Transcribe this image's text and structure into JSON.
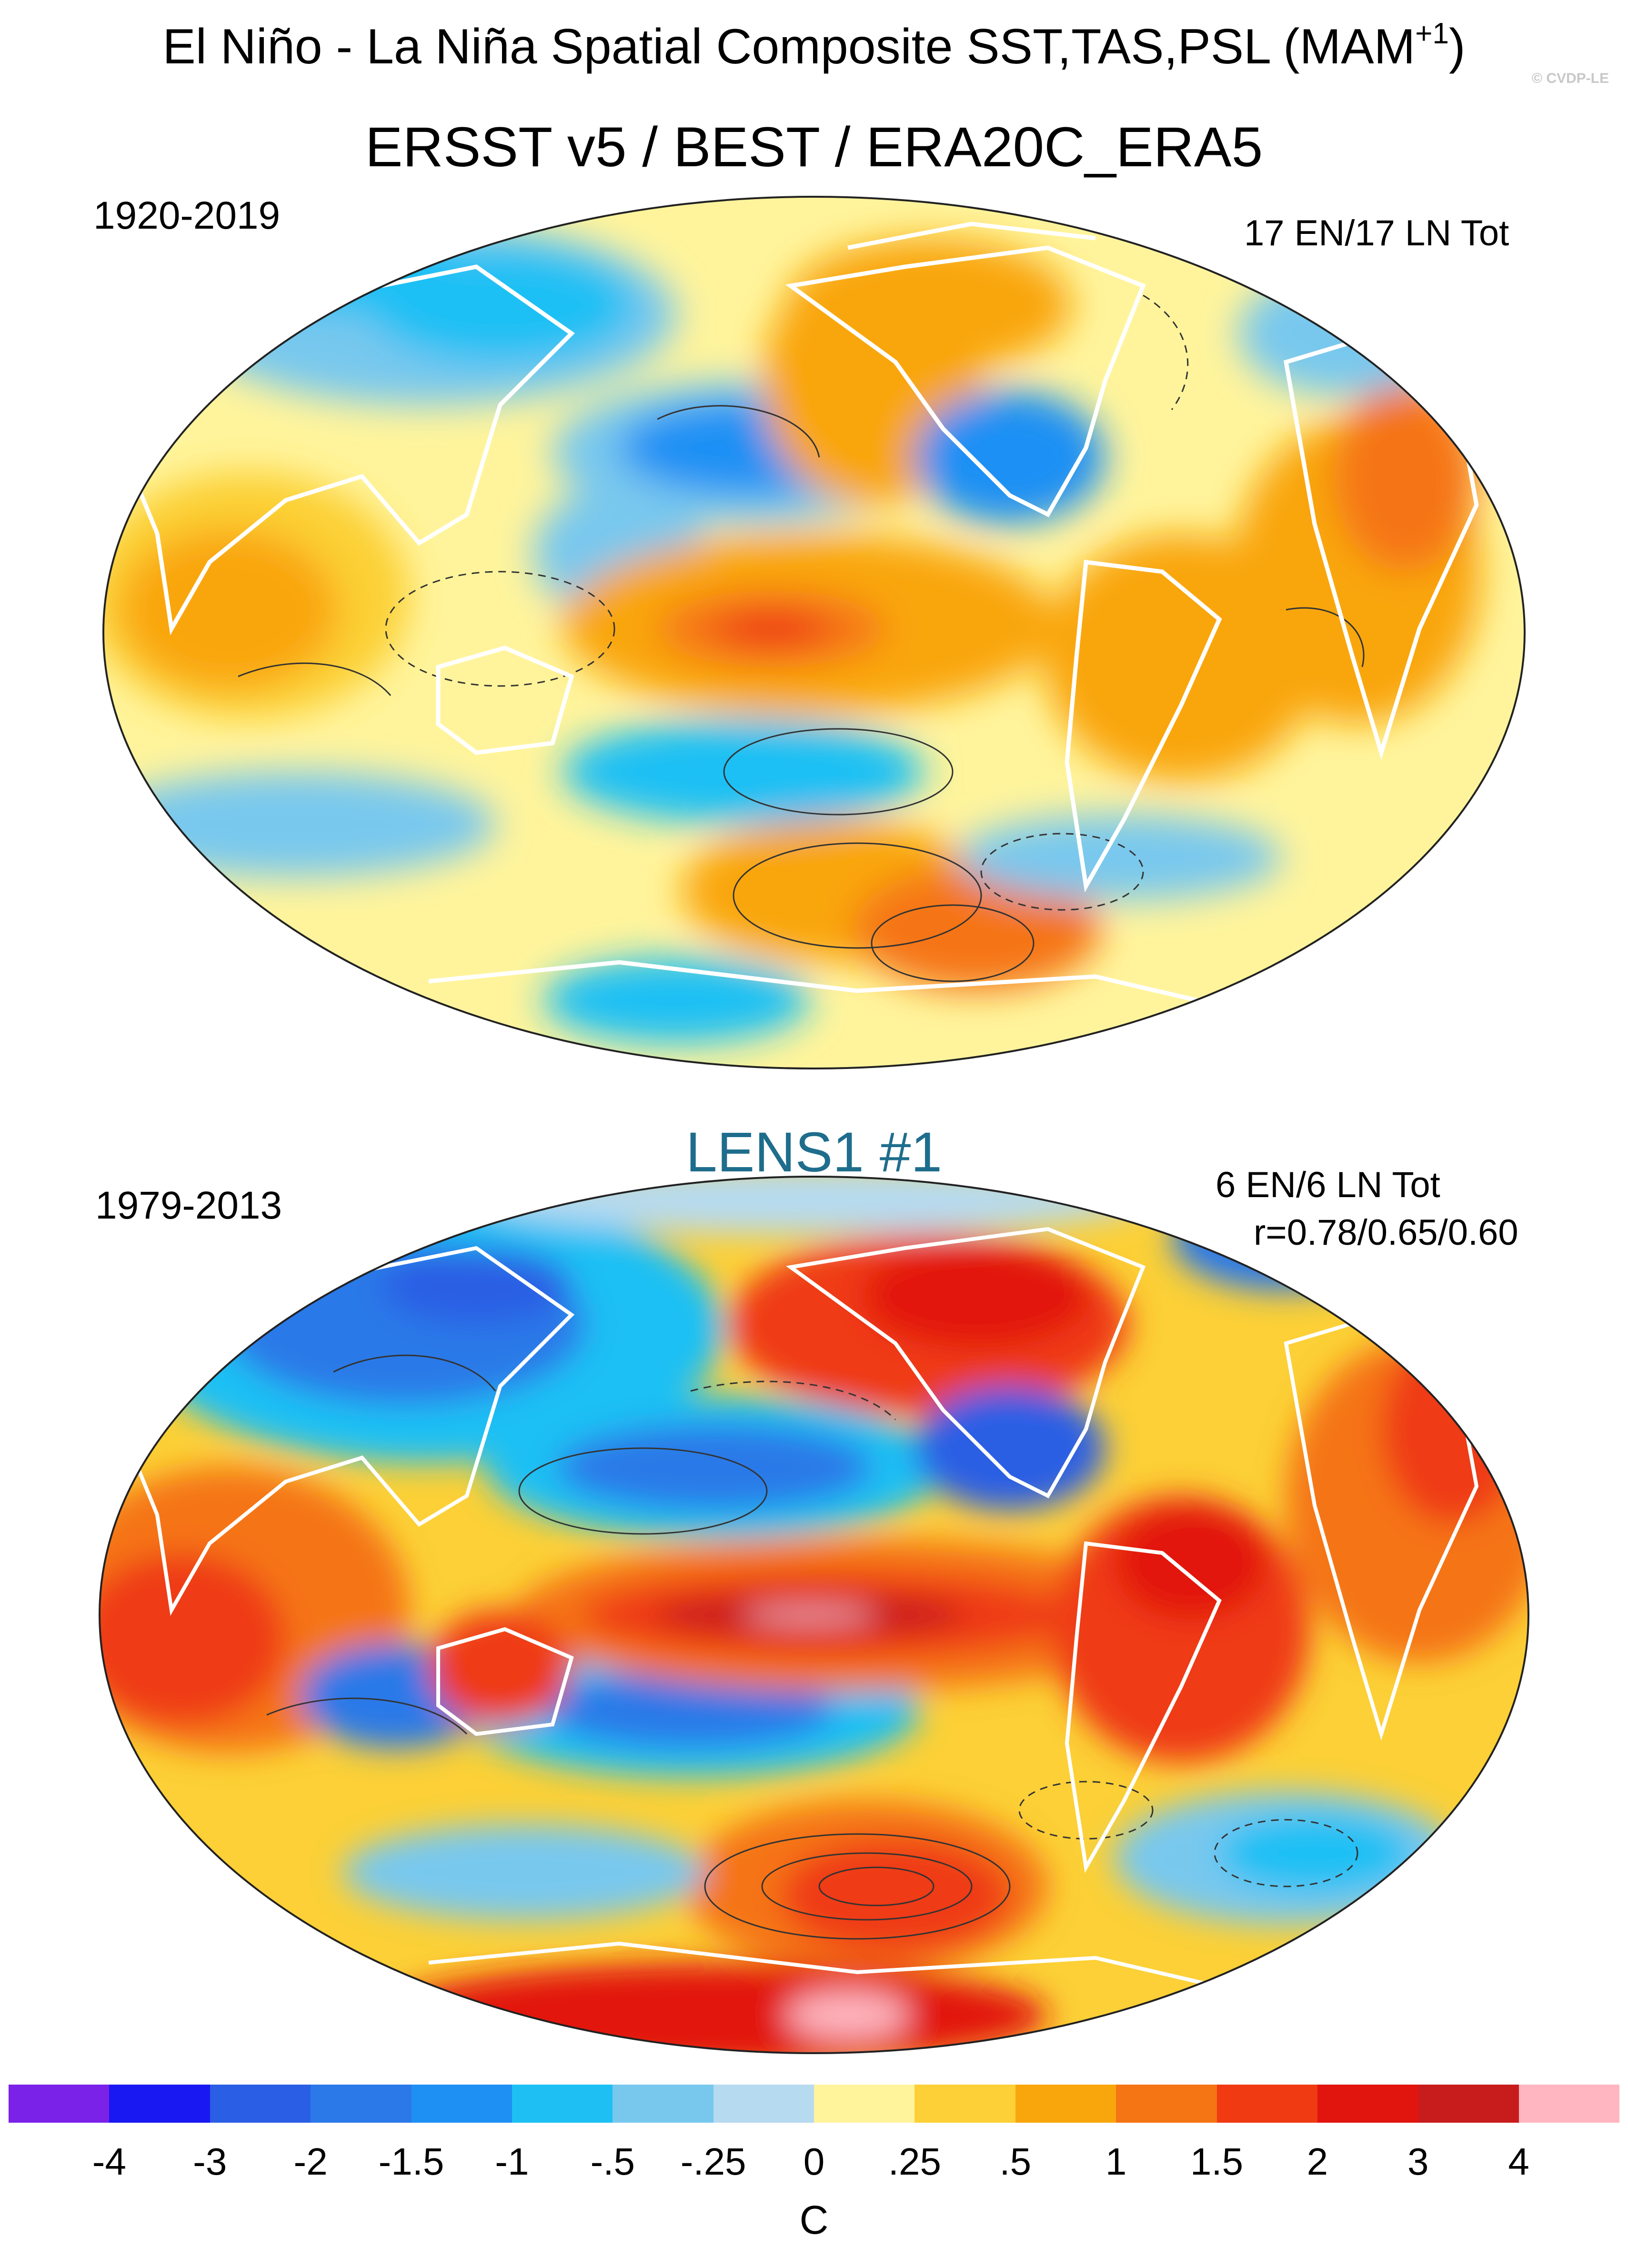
{
  "title": "El Niño - La Niña Spatial Composite SST,TAS,PSL (MAM",
  "title_sup": "+1",
  "title_close": ")",
  "watermark": "© CVDP-LE",
  "panels": [
    {
      "title": "ERSST v5 / BEST / ERA20C_ERA5",
      "period": "1920-2019",
      "count": "17 EN/17 LN Tot"
    },
    {
      "title": "LENS1 #1",
      "period": "1979-2013",
      "count": "6 EN/6 LN Tot",
      "correlation": "r=0.78/0.65/0.60"
    }
  ],
  "colorbar": {
    "unit": "C",
    "ticks": [
      "-4",
      "-3",
      "-2",
      "-1.5",
      "-1",
      "-.5",
      "-.25",
      "0",
      ".25",
      ".5",
      "1",
      "1.5",
      "2",
      "3",
      "4"
    ],
    "colors": [
      "#7b22e8",
      "#1a18f2",
      "#2a5ee4",
      "#2b79e8",
      "#1e90f4",
      "#1ec0f4",
      "#78c8ee",
      "#b6daf0",
      "#fff49c",
      "#fcd036",
      "#f9a60c",
      "#f57414",
      "#ef3a12",
      "#e2140e",
      "#c81c1c",
      "#ffb6c0"
    ]
  }
}
